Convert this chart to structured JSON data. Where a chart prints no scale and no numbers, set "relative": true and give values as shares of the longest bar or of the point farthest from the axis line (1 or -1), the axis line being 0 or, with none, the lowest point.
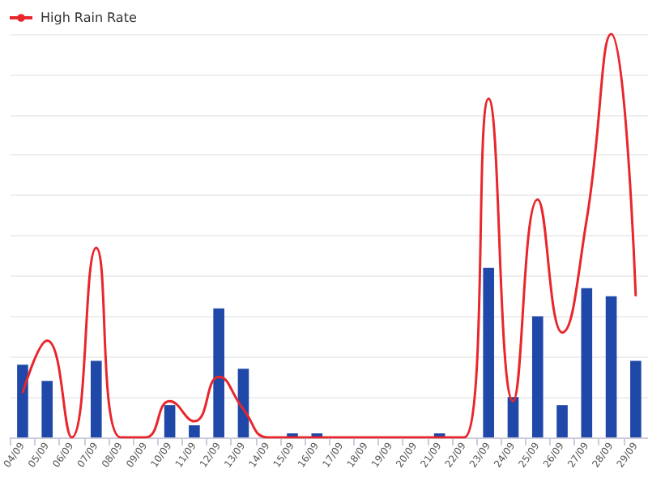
{
  "chart_data": {
    "type": "bar",
    "relative": true,
    "grid": "y",
    "legend": "top left",
    "categories": [
      "04/09",
      "05/09",
      "06/09",
      "07/09",
      "08/09",
      "09/09",
      "10/09",
      "11/09",
      "12/09",
      "13/09",
      "14/09",
      "15/09",
      "16/09",
      "17/09",
      "18/09",
      "19/09",
      "20/09",
      "21/09",
      "22/09",
      "23/09",
      "24/09",
      "25/09",
      "26/09",
      "27/09",
      "28/09",
      "29/09"
    ],
    "series": [
      {
        "color": "#1f48a8",
        "values": [
          0.18,
          0.14,
          0,
          0.19,
          0,
          0,
          0.08,
          0.03,
          0.32,
          0.17,
          0,
          0.01,
          0.01,
          0,
          0,
          0,
          0,
          0.01,
          0,
          0.42,
          0.1,
          0.3,
          0.08,
          0.37,
          0.35,
          0.19
        ]
      },
      {
        "type": "line",
        "name": "High Rain Rate",
        "color": "#e8262b",
        "marker": "none",
        "values": [
          0.11,
          0.24,
          0,
          0.47,
          0,
          0,
          0.09,
          0.04,
          0.15,
          0.07,
          0,
          0,
          0,
          0,
          0,
          0,
          0,
          0,
          0,
          0.84,
          0.09,
          0.59,
          0.26,
          0.54,
          1,
          0.35
        ]
      }
    ]
  }
}
